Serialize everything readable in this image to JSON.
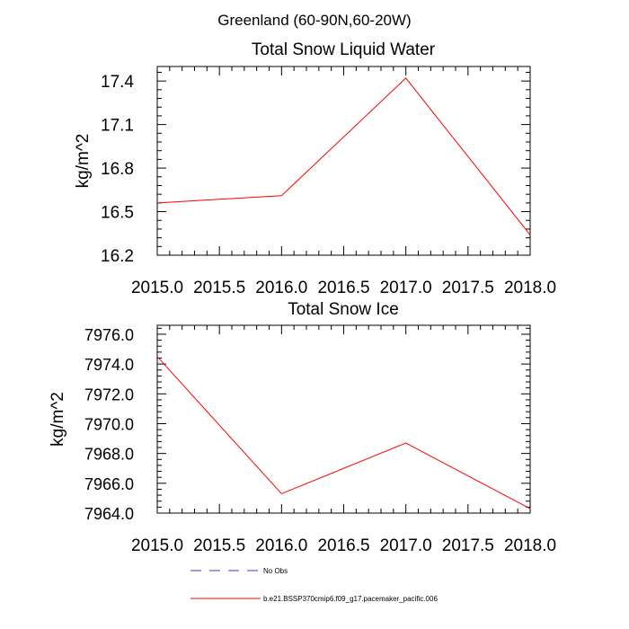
{
  "figure": {
    "suptitle": "Greenland (60-90N,60-20W)"
  },
  "chart_data": [
    {
      "type": "line",
      "title": "Total Snow Liquid Water",
      "xlabel": "",
      "ylabel": "kg/m^2",
      "xlim": [
        2015.0,
        2018.0
      ],
      "ylim": [
        16.2,
        17.5
      ],
      "x_ticks": [
        "2015.0",
        "2015.5",
        "2016.0",
        "2016.5",
        "2017.0",
        "2017.5",
        "2018.0"
      ],
      "y_ticks": [
        "16.2",
        "16.5",
        "16.8",
        "17.1",
        "17.4"
      ],
      "grid": false,
      "series": [
        {
          "name": "b.e21.BSSP370cmip6.f09_g17.pacemaker_pacific.006",
          "color": "#ff0000",
          "x": [
            2015.0,
            2016.0,
            2017.0,
            2018.0
          ],
          "y": [
            16.56,
            16.61,
            17.42,
            16.34
          ]
        }
      ]
    },
    {
      "type": "line",
      "title": "Total Snow Ice",
      "xlabel": "",
      "ylabel": "kg/m^2",
      "xlim": [
        2015.0,
        2018.0
      ],
      "ylim": [
        7964.0,
        7976.6
      ],
      "x_ticks": [
        "2015.0",
        "2015.5",
        "2016.0",
        "2016.5",
        "2017.0",
        "2017.5",
        "2018.0"
      ],
      "y_ticks": [
        "7964.0",
        "7966.0",
        "7968.0",
        "7970.0",
        "7972.0",
        "7974.0",
        "7976.0"
      ],
      "grid": false,
      "series": [
        {
          "name": "b.e21.BSSP370cmip6.f09_g17.pacemaker_pacific.006",
          "color": "#ff0000",
          "x": [
            2015.0,
            2016.0,
            2017.0,
            2018.0
          ],
          "y": [
            7974.5,
            7965.3,
            7968.7,
            7964.3
          ]
        }
      ]
    }
  ],
  "legend": {
    "placement": "bottom-center",
    "items": [
      {
        "label": "No Obs",
        "color": "#3b3bc4",
        "style": "dashed"
      },
      {
        "label": "b.e21.BSSP370cmip6.f09_g17.pacemaker_pacific.006",
        "color": "#ff0000",
        "style": "solid"
      }
    ]
  }
}
